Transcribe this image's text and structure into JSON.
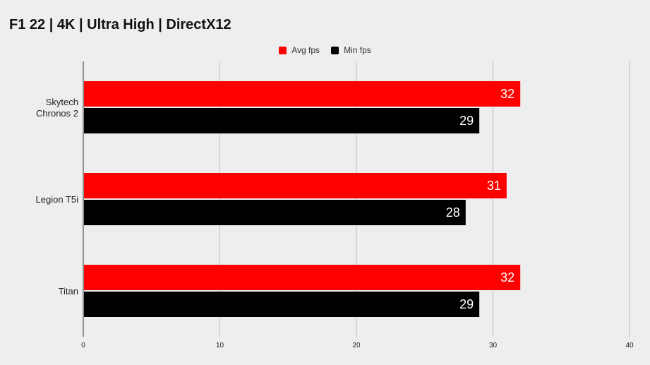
{
  "chart_data": {
    "type": "bar",
    "orientation": "horizontal",
    "title": "F1 22 | 4K | Ultra High | DirectX12",
    "categories": [
      "Skytech\nChronos 2",
      "Legion T5i",
      "Titan"
    ],
    "series": [
      {
        "name": "Avg fps",
        "color": "#ff0000",
        "values": [
          32,
          31,
          32
        ]
      },
      {
        "name": "Min fps",
        "color": "#000000",
        "values": [
          29,
          28,
          29
        ]
      }
    ],
    "xlim": [
      0,
      40
    ],
    "xticks": [
      0,
      10,
      20,
      30,
      40
    ],
    "grid": true,
    "legend_position": "top-center",
    "data_labels": true
  }
}
